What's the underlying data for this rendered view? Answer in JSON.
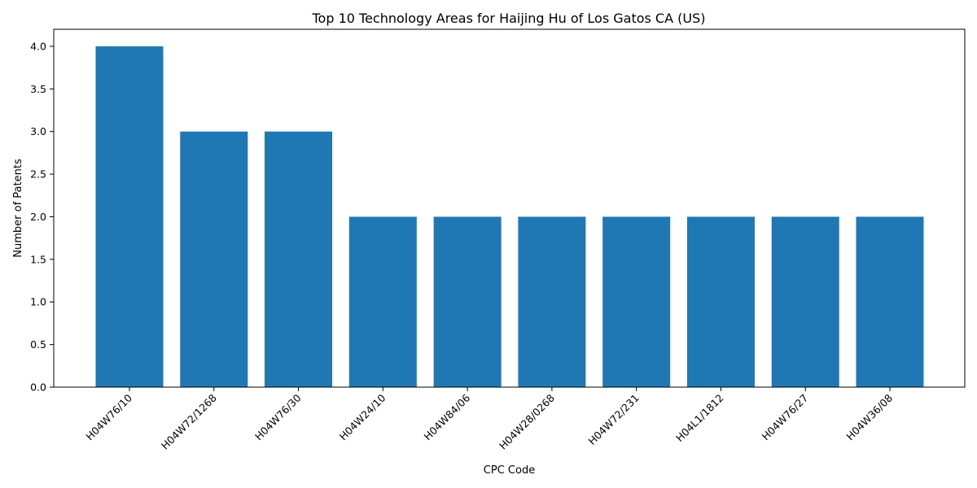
{
  "chart_data": {
    "type": "bar",
    "title": "Top 10 Technology Areas for Haijing Hu of Los Gatos CA (US)",
    "xlabel": "CPC Code",
    "ylabel": "Number of Patents",
    "categories": [
      "H04W76/10",
      "H04W72/1268",
      "H04W76/30",
      "H04W24/10",
      "H04W84/06",
      "H04W28/0268",
      "H04W72/231",
      "H04L1/1812",
      "H04W76/27",
      "H04W36/08"
    ],
    "values": [
      4,
      3,
      3,
      2,
      2,
      2,
      2,
      2,
      2,
      2
    ],
    "ylim": [
      0,
      4.2
    ],
    "yticks": [
      "0.0",
      "0.5",
      "1.0",
      "1.5",
      "2.0",
      "2.5",
      "3.0",
      "3.5",
      "4.0"
    ],
    "bar_color": "#1f77b4",
    "grid": false,
    "legend": "none"
  }
}
